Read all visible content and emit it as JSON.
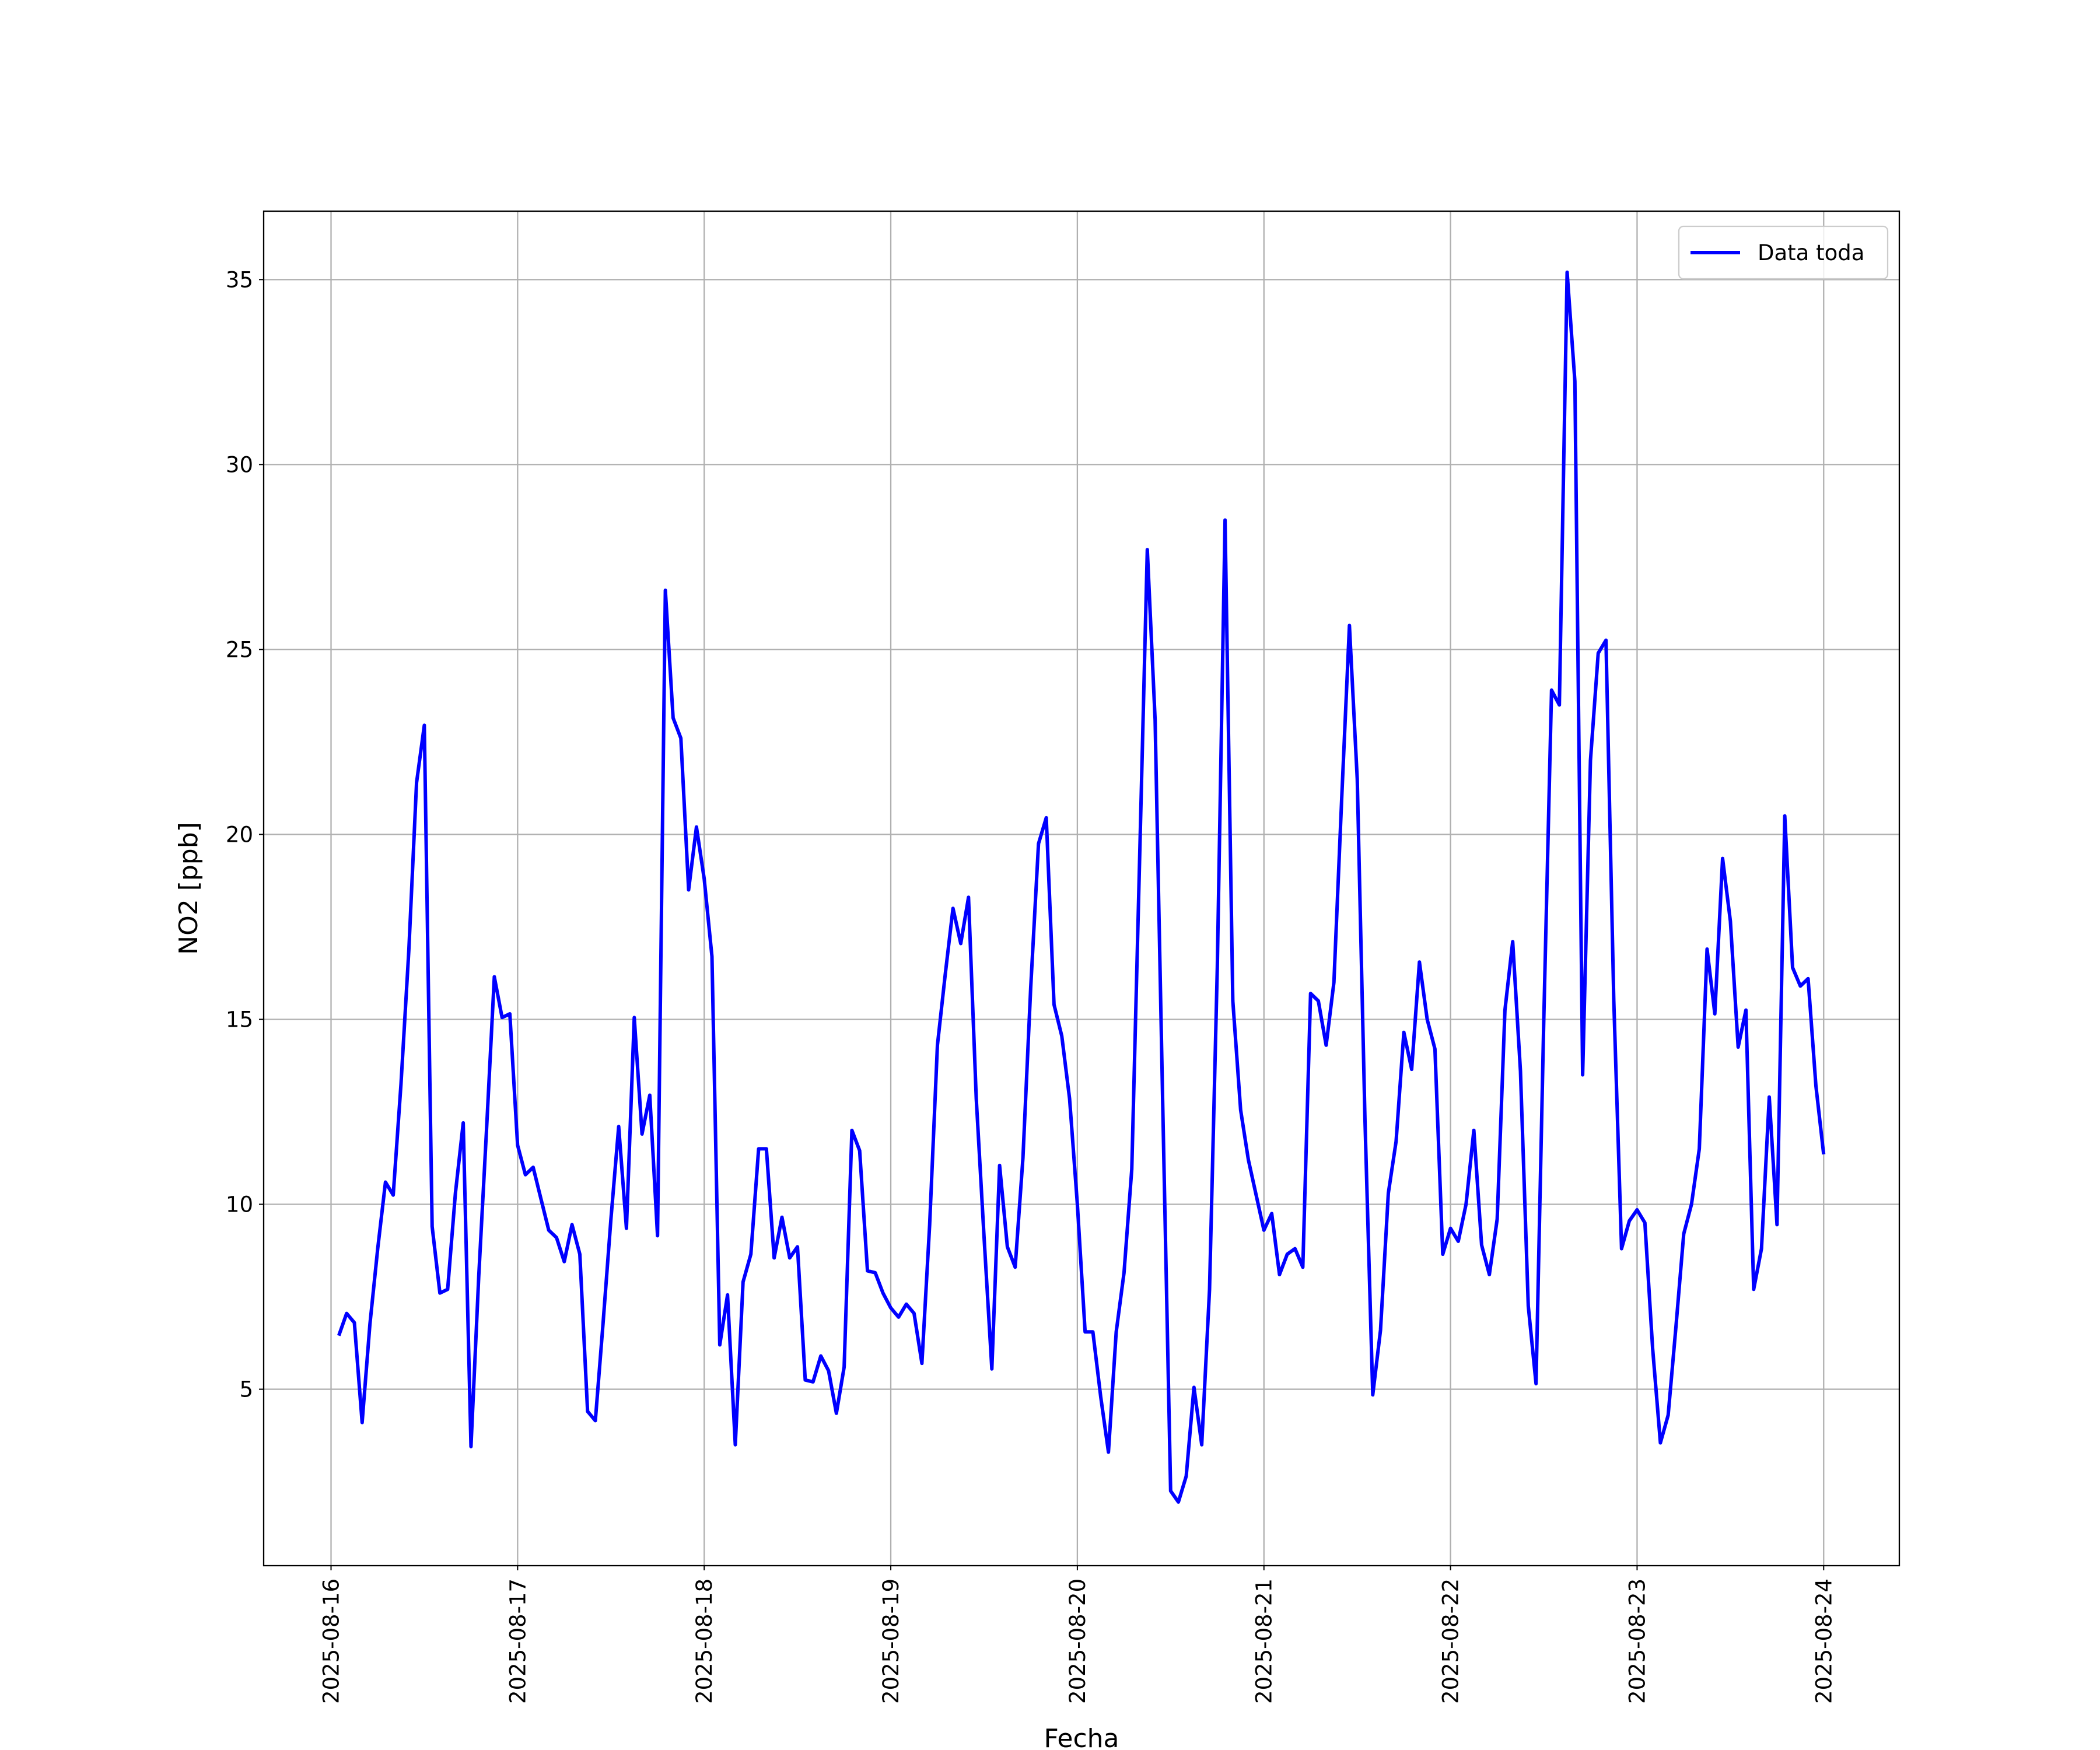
{
  "chart_data": {
    "type": "line",
    "xlabel": "Fecha",
    "ylabel": "NO2 [ppb]",
    "x": [
      "2025-08-16 01:00",
      "2025-08-16 02:00",
      "2025-08-16 03:00",
      "2025-08-16 04:00",
      "2025-08-16 05:00",
      "2025-08-16 06:00",
      "2025-08-16 07:00",
      "2025-08-16 08:00",
      "2025-08-16 09:00",
      "2025-08-16 10:00",
      "2025-08-16 11:00",
      "2025-08-16 12:00",
      "2025-08-16 13:00",
      "2025-08-16 14:00",
      "2025-08-16 15:00",
      "2025-08-16 16:00",
      "2025-08-16 17:00",
      "2025-08-16 18:00",
      "2025-08-16 19:00",
      "2025-08-16 20:00",
      "2025-08-16 21:00",
      "2025-08-16 22:00",
      "2025-08-16 23:00",
      "2025-08-17 00:00",
      "2025-08-17 01:00",
      "2025-08-17 02:00",
      "2025-08-17 03:00",
      "2025-08-17 04:00",
      "2025-08-17 05:00",
      "2025-08-17 06:00",
      "2025-08-17 07:00",
      "2025-08-17 08:00",
      "2025-08-17 09:00",
      "2025-08-17 10:00",
      "2025-08-17 11:00",
      "2025-08-17 12:00",
      "2025-08-17 13:00",
      "2025-08-17 14:00",
      "2025-08-17 15:00",
      "2025-08-17 16:00",
      "2025-08-17 17:00",
      "2025-08-17 18:00",
      "2025-08-17 19:00",
      "2025-08-17 20:00",
      "2025-08-17 21:00",
      "2025-08-17 22:00",
      "2025-08-17 23:00",
      "2025-08-18 00:00",
      "2025-08-18 01:00",
      "2025-08-18 02:00",
      "2025-08-18 03:00",
      "2025-08-18 04:00",
      "2025-08-18 05:00",
      "2025-08-18 06:00",
      "2025-08-18 07:00",
      "2025-08-18 08:00",
      "2025-08-18 09:00",
      "2025-08-18 10:00",
      "2025-08-18 11:00",
      "2025-08-18 12:00",
      "2025-08-18 13:00",
      "2025-08-18 14:00",
      "2025-08-18 15:00",
      "2025-08-18 16:00",
      "2025-08-18 17:00",
      "2025-08-18 18:00",
      "2025-08-18 19:00",
      "2025-08-18 20:00",
      "2025-08-18 21:00",
      "2025-08-18 22:00",
      "2025-08-18 23:00",
      "2025-08-19 00:00",
      "2025-08-19 01:00",
      "2025-08-19 02:00",
      "2025-08-19 03:00",
      "2025-08-19 04:00",
      "2025-08-19 05:00",
      "2025-08-19 06:00",
      "2025-08-19 07:00",
      "2025-08-19 08:00",
      "2025-08-19 09:00",
      "2025-08-19 10:00",
      "2025-08-19 11:00",
      "2025-08-19 12:00",
      "2025-08-19 13:00",
      "2025-08-19 14:00",
      "2025-08-19 15:00",
      "2025-08-19 16:00",
      "2025-08-19 17:00",
      "2025-08-19 18:00",
      "2025-08-19 19:00",
      "2025-08-19 20:00",
      "2025-08-19 21:00",
      "2025-08-19 22:00",
      "2025-08-19 23:00",
      "2025-08-20 00:00",
      "2025-08-20 01:00",
      "2025-08-20 02:00",
      "2025-08-20 03:00",
      "2025-08-20 04:00",
      "2025-08-20 05:00",
      "2025-08-20 06:00",
      "2025-08-20 07:00",
      "2025-08-20 08:00",
      "2025-08-20 09:00",
      "2025-08-20 10:00",
      "2025-08-20 11:00",
      "2025-08-20 12:00",
      "2025-08-20 13:00",
      "2025-08-20 14:00",
      "2025-08-20 15:00",
      "2025-08-20 16:00",
      "2025-08-20 17:00",
      "2025-08-20 18:00",
      "2025-08-20 19:00",
      "2025-08-20 20:00",
      "2025-08-20 21:00",
      "2025-08-20 22:00",
      "2025-08-20 23:00",
      "2025-08-21 00:00",
      "2025-08-21 01:00",
      "2025-08-21 02:00",
      "2025-08-21 03:00",
      "2025-08-21 04:00",
      "2025-08-21 05:00",
      "2025-08-21 06:00",
      "2025-08-21 07:00",
      "2025-08-21 08:00",
      "2025-08-21 09:00",
      "2025-08-21 10:00",
      "2025-08-21 11:00",
      "2025-08-21 12:00",
      "2025-08-21 13:00",
      "2025-08-21 14:00",
      "2025-08-21 15:00",
      "2025-08-21 16:00",
      "2025-08-21 17:00",
      "2025-08-21 18:00",
      "2025-08-21 19:00",
      "2025-08-21 20:00",
      "2025-08-21 21:00",
      "2025-08-21 22:00",
      "2025-08-21 23:00",
      "2025-08-22 00:00",
      "2025-08-22 01:00",
      "2025-08-22 02:00",
      "2025-08-22 03:00",
      "2025-08-22 04:00",
      "2025-08-22 05:00",
      "2025-08-22 06:00",
      "2025-08-22 07:00",
      "2025-08-22 08:00",
      "2025-08-22 09:00",
      "2025-08-22 10:00",
      "2025-08-22 11:00",
      "2025-08-22 12:00",
      "2025-08-22 13:00",
      "2025-08-22 14:00",
      "2025-08-22 15:00",
      "2025-08-22 16:00",
      "2025-08-22 17:00",
      "2025-08-22 18:00",
      "2025-08-22 19:00",
      "2025-08-22 20:00",
      "2025-08-22 21:00",
      "2025-08-22 22:00",
      "2025-08-22 23:00",
      "2025-08-23 00:00",
      "2025-08-23 01:00",
      "2025-08-23 02:00",
      "2025-08-23 03:00",
      "2025-08-23 04:00",
      "2025-08-23 05:00",
      "2025-08-23 06:00",
      "2025-08-23 07:00",
      "2025-08-23 08:00",
      "2025-08-23 09:00",
      "2025-08-23 10:00",
      "2025-08-23 11:00",
      "2025-08-23 12:00",
      "2025-08-23 13:00",
      "2025-08-23 14:00",
      "2025-08-23 15:00",
      "2025-08-23 16:00",
      "2025-08-23 17:00",
      "2025-08-23 18:00",
      "2025-08-23 19:00",
      "2025-08-23 20:00",
      "2025-08-23 21:00",
      "2025-08-23 22:00",
      "2025-08-23 23:00",
      "2025-08-24 00:00"
    ],
    "series": [
      {
        "name": "Data toda",
        "color": "#0000ff",
        "values": [
          6.45,
          7.05,
          6.8,
          4.1,
          6.75,
          8.8,
          10.6,
          10.25,
          13.25,
          16.85,
          21.4,
          22.95,
          9.4,
          7.6,
          7.7,
          10.3,
          12.2,
          3.45,
          8.05,
          12.0,
          16.15,
          15.05,
          15.15,
          11.6,
          10.8,
          11.0,
          10.15,
          9.3,
          9.1,
          8.45,
          9.45,
          8.65,
          4.4,
          4.15,
          6.8,
          9.6,
          12.1,
          9.35,
          15.05,
          11.9,
          12.95,
          9.15,
          26.6,
          23.15,
          22.6,
          18.5,
          20.2,
          18.8,
          16.7,
          6.2,
          7.55,
          3.5,
          7.9,
          8.65,
          11.5,
          11.5,
          8.55,
          9.65,
          8.55,
          8.85,
          5.25,
          5.2,
          5.9,
          5.5,
          4.35,
          5.6,
          12.0,
          11.45,
          8.2,
          8.15,
          7.6,
          7.2,
          6.95,
          7.3,
          7.05,
          5.7,
          9.45,
          14.3,
          16.2,
          18.0,
          17.05,
          18.3,
          12.85,
          9.1,
          5.55,
          11.05,
          8.85,
          8.3,
          11.25,
          15.85,
          19.75,
          20.45,
          15.4,
          14.55,
          12.85,
          10.0,
          6.55,
          6.55,
          4.8,
          3.3,
          6.55,
          8.15,
          10.95,
          19.25,
          27.7,
          23.1,
          12.5,
          2.25,
          1.95,
          2.65,
          5.05,
          3.5,
          7.7,
          16.4,
          28.5,
          15.5,
          12.55,
          11.2,
          10.25,
          9.3,
          9.75,
          8.1,
          8.65,
          8.8,
          8.3,
          15.7,
          15.5,
          14.3,
          16.0,
          20.95,
          25.65,
          21.5,
          12.25,
          4.85,
          6.6,
          10.3,
          11.7,
          14.65,
          13.65,
          16.55,
          15.0,
          14.2,
          8.65,
          9.35,
          9.0,
          10.0,
          12.0,
          8.9,
          8.1,
          9.6,
          15.25,
          17.1,
          13.6,
          7.25,
          5.15,
          15.0,
          23.9,
          23.5,
          35.2,
          32.25,
          13.5,
          22.0,
          24.9,
          25.25,
          15.5,
          8.8,
          9.55,
          9.85,
          9.5,
          6.1,
          3.55,
          4.3,
          6.7,
          9.2,
          10.0,
          11.5,
          16.9,
          15.15,
          19.35,
          17.65,
          14.25,
          15.25,
          7.7,
          8.8,
          12.9,
          9.45,
          20.5,
          16.4,
          15.9,
          16.1,
          13.2,
          11.35
        ]
      }
    ],
    "xlim": [
      "2025-08-15 15:20",
      "2025-08-24 09:44"
    ],
    "xticks": [
      "2025-08-16",
      "2025-08-17",
      "2025-08-18",
      "2025-08-19",
      "2025-08-20",
      "2025-08-21",
      "2025-08-22",
      "2025-08-23",
      "2025-08-24"
    ],
    "ylim": [
      0.23,
      36.85
    ],
    "yticks": [
      5,
      10,
      15,
      20,
      25,
      30,
      35
    ],
    "grid": true,
    "legend": "upper right"
  }
}
